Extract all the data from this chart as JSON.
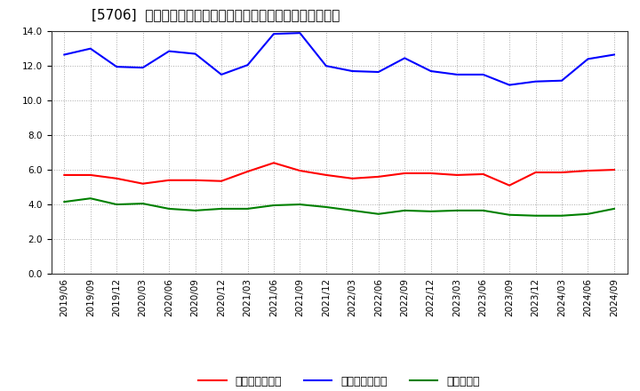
{
  "title": "[5706]  売上債権回転率、買入債務回転率、在庫回転率の推移",
  "x_labels": [
    "2019/06",
    "2019/09",
    "2019/12",
    "2020/03",
    "2020/06",
    "2020/09",
    "2020/12",
    "2021/03",
    "2021/06",
    "2021/09",
    "2021/12",
    "2022/03",
    "2022/06",
    "2022/09",
    "2022/12",
    "2023/03",
    "2023/06",
    "2023/09",
    "2023/12",
    "2024/03",
    "2024/06",
    "2024/09"
  ],
  "receivables_turnover": [
    5.7,
    5.7,
    5.5,
    5.2,
    5.4,
    5.4,
    5.35,
    5.9,
    6.4,
    5.95,
    5.7,
    5.5,
    5.6,
    5.8,
    5.8,
    5.7,
    5.75,
    5.1,
    5.85,
    5.85,
    5.95,
    6.0
  ],
  "payables_turnover": [
    12.65,
    13.0,
    11.95,
    11.9,
    12.85,
    12.7,
    11.5,
    12.05,
    13.85,
    13.9,
    12.0,
    11.7,
    11.65,
    12.45,
    11.7,
    11.5,
    11.5,
    10.9,
    11.1,
    11.15,
    12.4,
    12.65
  ],
  "inventory_turnover": [
    4.15,
    4.35,
    4.0,
    4.05,
    3.75,
    3.65,
    3.75,
    3.75,
    3.95,
    4.0,
    3.85,
    3.65,
    3.45,
    3.65,
    3.6,
    3.65,
    3.65,
    3.4,
    3.35,
    3.35,
    3.45,
    3.75
  ],
  "legend_labels": [
    "売上債権回転率",
    "買入債務回転率",
    "在庫回転率"
  ],
  "line_colors": [
    "#ff0000",
    "#0000ff",
    "#008000"
  ],
  "ylim": [
    0.0,
    14.0
  ],
  "yticks": [
    0.0,
    2.0,
    4.0,
    6.0,
    8.0,
    10.0,
    12.0,
    14.0
  ],
  "background_color": "#ffffff",
  "plot_bg_color": "#ffffff",
  "grid_color": "#aaaaaa",
  "title_fontsize": 11,
  "tick_fontsize": 7.5,
  "legend_fontsize": 9
}
